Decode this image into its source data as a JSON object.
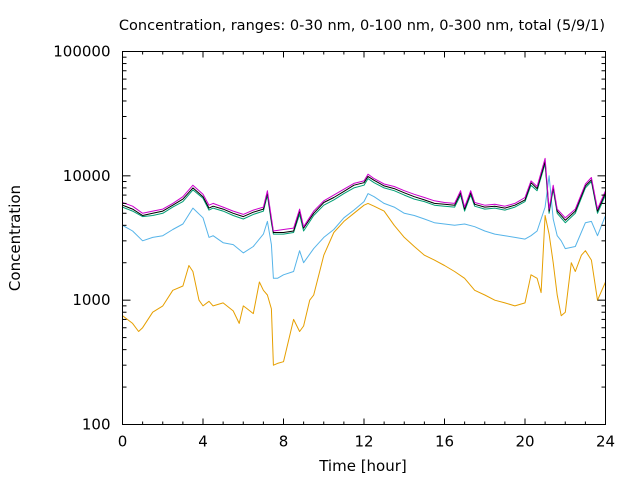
{
  "chart_data": {
    "type": "line",
    "title": "Concentration, ranges: 0-30 nm, 0-100 nm, 0-300 nm, total (5/9/1)",
    "xlabel": "Time [hour]",
    "ylabel": "Concentration",
    "xlim": [
      0,
      24
    ],
    "ylim": [
      100,
      100000
    ],
    "yscale": "log",
    "grid": false,
    "legend": "none",
    "xticks": [
      0,
      4,
      8,
      12,
      16,
      20,
      24
    ],
    "xtick_labels": [
      "0",
      "4",
      "8",
      "12",
      "16",
      "20",
      "24"
    ],
    "yticks": [
      100,
      1000,
      10000,
      100000
    ],
    "ytick_labels": [
      "100",
      "1000",
      "10000",
      "100000"
    ],
    "series": [
      {
        "color": "#e69f00",
        "x": [
          0,
          0.5,
          0.8,
          1,
          1.5,
          2,
          2.5,
          3,
          3.3,
          3.5,
          3.8,
          4,
          4.3,
          4.5,
          5,
          5.5,
          5.8,
          6,
          6.2,
          6.5,
          6.8,
          7,
          7.2,
          7.4,
          7.5,
          7.7,
          8,
          8.5,
          8.8,
          9,
          9.3,
          9.5,
          10,
          10.5,
          11,
          11.5,
          12,
          12.2,
          12.5,
          13,
          13.5,
          14,
          14.5,
          15,
          15.5,
          16,
          16.5,
          17,
          17.5,
          18,
          18.5,
          19,
          19.5,
          20,
          20.3,
          20.6,
          20.8,
          21,
          21.2,
          21.4,
          21.6,
          21.8,
          22,
          22.3,
          22.5,
          22.8,
          23,
          23.3,
          23.6,
          24
        ],
        "y": [
          750,
          650,
          560,
          600,
          800,
          900,
          1200,
          1300,
          1900,
          1700,
          1000,
          900,
          980,
          900,
          950,
          820,
          650,
          900,
          850,
          780,
          1400,
          1200,
          1100,
          850,
          300,
          310,
          320,
          700,
          560,
          620,
          1000,
          1100,
          2300,
          3500,
          4300,
          5000,
          5800,
          6000,
          5700,
          5200,
          4000,
          3200,
          2700,
          2300,
          2100,
          1900,
          1700,
          1500,
          1200,
          1100,
          1000,
          950,
          900,
          950,
          1600,
          1500,
          1150,
          4800,
          3400,
          2000,
          1100,
          750,
          800,
          2000,
          1700,
          2300,
          2500,
          2100,
          1000,
          1400
        ]
      },
      {
        "color": "#56b4e9",
        "x": [
          0,
          0.5,
          1,
          1.5,
          2,
          2.5,
          3,
          3.5,
          4,
          4.3,
          4.5,
          5,
          5.5,
          6,
          6.5,
          7,
          7.2,
          7.4,
          7.5,
          7.7,
          8,
          8.5,
          8.8,
          9,
          9.5,
          10,
          10.5,
          11,
          11.5,
          12,
          12.2,
          12.5,
          13,
          13.5,
          14,
          14.5,
          15,
          15.5,
          16,
          16.5,
          17,
          17.5,
          18,
          18.5,
          19,
          19.5,
          20,
          20.3,
          20.6,
          21,
          21.2,
          21.4,
          21.6,
          21.8,
          22,
          22.5,
          23,
          23.3,
          23.6,
          24
        ],
        "y": [
          4000,
          3600,
          3000,
          3200,
          3300,
          3700,
          4100,
          5500,
          4600,
          3200,
          3300,
          2900,
          2800,
          2400,
          2700,
          3400,
          4300,
          2800,
          1500,
          1500,
          1600,
          1700,
          2500,
          2000,
          2600,
          3200,
          3700,
          4600,
          5300,
          6200,
          7200,
          6800,
          6000,
          5600,
          5000,
          4800,
          4500,
          4200,
          4100,
          4000,
          4100,
          3900,
          3600,
          3400,
          3300,
          3200,
          3100,
          3300,
          3600,
          5600,
          10000,
          4500,
          3300,
          3000,
          2600,
          2700,
          4200,
          4300,
          3300,
          4800
        ]
      },
      {
        "color": "#009e73",
        "x": [
          0,
          0.5,
          1,
          1.5,
          2,
          2.5,
          3,
          3.5,
          4,
          4.3,
          4.5,
          5,
          5.5,
          6,
          6.5,
          7,
          7.2,
          7.4,
          7.5,
          8,
          8.5,
          8.8,
          9,
          9.5,
          10,
          10.5,
          11,
          11.5,
          12,
          12.2,
          12.5,
          13,
          13.5,
          14,
          14.5,
          15,
          15.5,
          16,
          16.5,
          16.8,
          17,
          17.3,
          17.5,
          18,
          18.5,
          19,
          19.5,
          20,
          20.3,
          20.6,
          21,
          21.2,
          21.4,
          21.6,
          22,
          22.5,
          23,
          23.3,
          23.6,
          24
        ],
        "y": [
          5600,
          5200,
          4700,
          4800,
          5000,
          5600,
          6200,
          7700,
          6600,
          5300,
          5500,
          5200,
          4800,
          4500,
          4900,
          5200,
          7000,
          4200,
          3400,
          3400,
          3500,
          4900,
          3600,
          4800,
          5800,
          6400,
          7200,
          8000,
          8400,
          9500,
          8800,
          8000,
          7600,
          7000,
          6500,
          6200,
          5800,
          5700,
          5600,
          7000,
          5200,
          7000,
          5700,
          5400,
          5500,
          5300,
          5600,
          6200,
          8400,
          7600,
          12500,
          5000,
          7800,
          5000,
          4200,
          5000,
          8000,
          9000,
          5000,
          7000
        ]
      },
      {
        "color": "#000000",
        "x": [
          0,
          0.5,
          1,
          1.5,
          2,
          2.5,
          3,
          3.5,
          4,
          4.3,
          4.5,
          5,
          5.5,
          6,
          6.5,
          7,
          7.2,
          7.4,
          7.5,
          8,
          8.5,
          8.8,
          9,
          9.5,
          10,
          10.5,
          11,
          11.5,
          12,
          12.2,
          12.5,
          13,
          13.5,
          14,
          14.5,
          15,
          15.5,
          16,
          16.5,
          16.8,
          17,
          17.3,
          17.5,
          18,
          18.5,
          19,
          19.5,
          20,
          20.3,
          20.6,
          21,
          21.2,
          21.4,
          21.6,
          22,
          22.5,
          23,
          23.3,
          23.6,
          24
        ],
        "y": [
          5800,
          5400,
          4800,
          5000,
          5200,
          5800,
          6500,
          8000,
          6800,
          5500,
          5700,
          5400,
          5000,
          4700,
          5100,
          5400,
          7300,
          4400,
          3500,
          3500,
          3600,
          5200,
          3800,
          5000,
          6100,
          6700,
          7500,
          8400,
          8800,
          9900,
          9200,
          8300,
          7900,
          7300,
          6800,
          6400,
          6000,
          5900,
          5800,
          7300,
          5400,
          7300,
          5900,
          5600,
          5700,
          5500,
          5800,
          6400,
          8800,
          7900,
          13000,
          5200,
          8100,
          5200,
          4400,
          5200,
          8300,
          9300,
          5200,
          7300
        ]
      },
      {
        "color": "#cc00cc",
        "x": [
          0,
          0.5,
          1,
          1.5,
          2,
          2.5,
          3,
          3.5,
          4,
          4.3,
          4.5,
          5,
          5.5,
          6,
          6.5,
          7,
          7.2,
          7.4,
          7.5,
          8,
          8.5,
          8.8,
          9,
          9.5,
          10,
          10.5,
          11,
          11.5,
          12,
          12.2,
          12.5,
          13,
          13.5,
          14,
          14.5,
          15,
          15.5,
          16,
          16.5,
          16.8,
          17,
          17.3,
          17.5,
          18,
          18.5,
          19,
          19.5,
          20,
          20.3,
          20.6,
          21,
          21.2,
          21.4,
          21.6,
          22,
          22.5,
          23,
          23.3,
          23.6,
          24
        ],
        "y": [
          6100,
          5700,
          5000,
          5200,
          5400,
          6000,
          6800,
          8400,
          7100,
          5800,
          6000,
          5600,
          5200,
          4900,
          5300,
          5600,
          7600,
          4600,
          3600,
          3700,
          3800,
          5400,
          3900,
          5200,
          6300,
          7000,
          7800,
          8700,
          9100,
          10300,
          9500,
          8600,
          8200,
          7600,
          7100,
          6700,
          6300,
          6100,
          6000,
          7600,
          5600,
          7600,
          6100,
          5800,
          5900,
          5700,
          6000,
          6700,
          9100,
          8200,
          13800,
          5400,
          8400,
          5400,
          4600,
          5400,
          8600,
          9700,
          5400,
          7600
        ]
      }
    ]
  }
}
